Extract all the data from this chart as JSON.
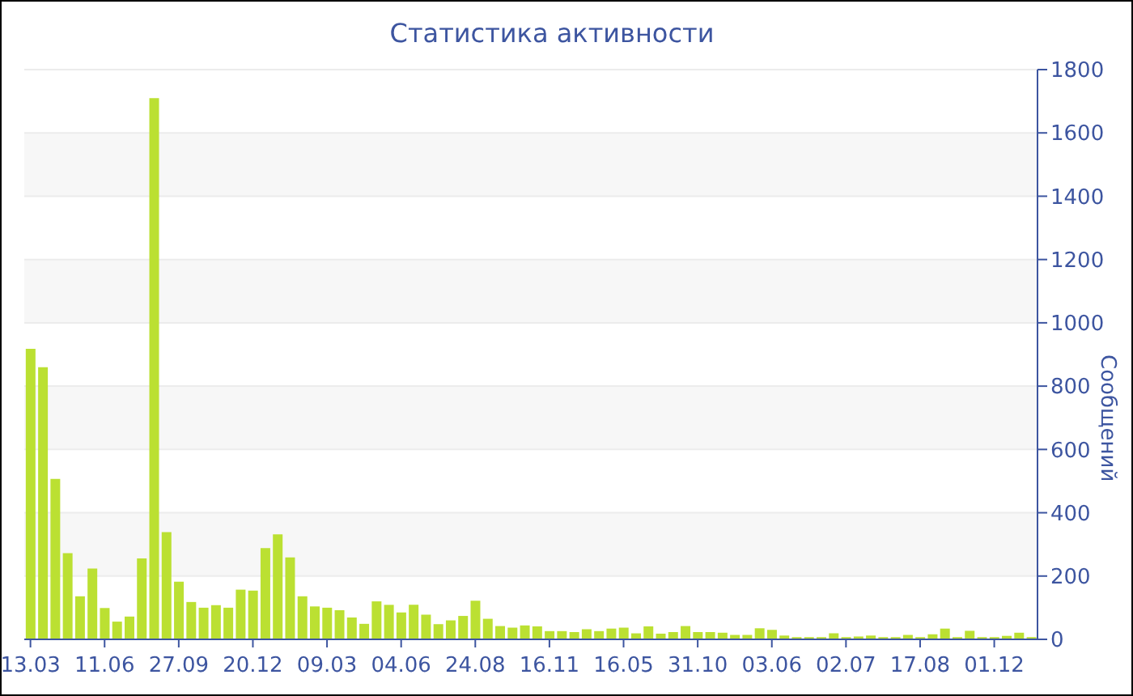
{
  "chart_data": {
    "type": "bar",
    "title": "Статистика активности",
    "ylabel": "Сообщений",
    "categories": [
      "13.03",
      null,
      null,
      null,
      null,
      null,
      "11.06",
      null,
      null,
      null,
      null,
      null,
      "27.09",
      null,
      null,
      null,
      null,
      null,
      "20.12",
      null,
      null,
      null,
      null,
      null,
      "09.03",
      null,
      null,
      null,
      null,
      null,
      "04.06",
      null,
      null,
      null,
      null,
      null,
      "24.08",
      null,
      null,
      null,
      null,
      null,
      "16.11",
      null,
      null,
      null,
      null,
      null,
      "16.05",
      null,
      null,
      null,
      null,
      null,
      "31.10",
      null,
      null,
      null,
      null,
      null,
      "03.06",
      null,
      null,
      null,
      null,
      null,
      "02.07",
      null,
      null,
      null,
      null,
      null,
      "17.08",
      null,
      null,
      null,
      null,
      null,
      "01.12",
      null,
      null,
      null
    ],
    "values": [
      918,
      860,
      507,
      272,
      136,
      224,
      99,
      56,
      72,
      256,
      1710,
      339,
      182,
      118,
      100,
      108,
      100,
      157,
      154,
      288,
      332,
      259,
      136,
      104,
      100,
      92,
      69,
      49,
      120,
      109,
      85,
      109,
      78,
      48,
      60,
      74,
      122,
      65,
      42,
      37,
      44,
      41,
      26,
      26,
      23,
      32,
      26,
      34,
      37,
      19,
      41,
      18,
      23,
      42,
      23,
      23,
      21,
      14,
      14,
      35,
      30,
      12,
      7,
      7,
      7,
      19,
      7,
      9,
      12,
      7,
      7,
      14,
      7,
      16,
      34,
      7,
      27,
      7,
      7,
      11,
      21,
      7
    ],
    "color": "#bbe032",
    "ylim": [
      0,
      1800
    ],
    "yticks": [
      0,
      200,
      400,
      600,
      800,
      1000,
      1200,
      1400,
      1600,
      1800
    ],
    "grid": "y"
  }
}
